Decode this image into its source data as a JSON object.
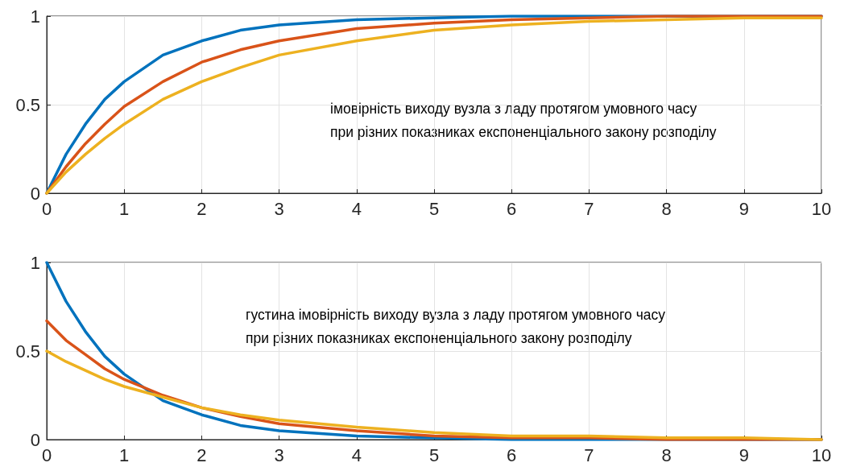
{
  "chart_data": [
    {
      "type": "line",
      "x": [
        0,
        0.25,
        0.5,
        0.75,
        1,
        1.5,
        2,
        2.5,
        3,
        4,
        5,
        6,
        7,
        8,
        9,
        10
      ],
      "xlim": [
        0,
        10
      ],
      "xticks": [
        0,
        1,
        2,
        3,
        4,
        5,
        6,
        7,
        8,
        9,
        10
      ],
      "ylim": [
        0,
        1
      ],
      "yticks": [
        0,
        0.5,
        1
      ],
      "grid": true,
      "annotations": [
        "імовірність виходу вузла з ладу протягом умовного часу\nпри різних показниках експоненціального закону розподілу"
      ],
      "series": [
        {
          "color": "#0072bd",
          "values": [
            0,
            0.22,
            0.39,
            0.53,
            0.63,
            0.78,
            0.86,
            0.92,
            0.95,
            0.98,
            0.99,
            1,
            1,
            1,
            1,
            1
          ]
        },
        {
          "color": "#d95319",
          "values": [
            0,
            0.15,
            0.28,
            0.39,
            0.49,
            0.63,
            0.74,
            0.81,
            0.86,
            0.93,
            0.96,
            0.98,
            0.99,
            1,
            1,
            1
          ]
        },
        {
          "color": "#edb120",
          "values": [
            0,
            0.12,
            0.22,
            0.31,
            0.39,
            0.53,
            0.63,
            0.71,
            0.78,
            0.86,
            0.92,
            0.95,
            0.97,
            0.98,
            0.99,
            0.99
          ]
        }
      ]
    },
    {
      "type": "line",
      "x": [
        0,
        0.25,
        0.5,
        0.75,
        1,
        1.5,
        2,
        2.5,
        3,
        4,
        5,
        6,
        7,
        8,
        9,
        10
      ],
      "xlim": [
        0,
        10
      ],
      "xticks": [
        0,
        1,
        2,
        3,
        4,
        5,
        6,
        7,
        8,
        9,
        10
      ],
      "ylim": [
        0,
        1
      ],
      "yticks": [
        0,
        0.5,
        1
      ],
      "grid": true,
      "annotations": [
        "густина імовірність виходу вузла з ладу протягом умовного часу\nпри різних показниках експоненціального закону розподілу"
      ],
      "series": [
        {
          "color": "#0072bd",
          "values": [
            1,
            0.78,
            0.61,
            0.47,
            0.37,
            0.22,
            0.14,
            0.08,
            0.05,
            0.02,
            0.01,
            0,
            0,
            0,
            0,
            0
          ]
        },
        {
          "color": "#d95319",
          "values": [
            0.67,
            0.56,
            0.48,
            0.4,
            0.34,
            0.25,
            0.18,
            0.13,
            0.09,
            0.05,
            0.02,
            0.01,
            0.01,
            0,
            0,
            0
          ]
        },
        {
          "color": "#edb120",
          "values": [
            0.5,
            0.44,
            0.39,
            0.34,
            0.3,
            0.24,
            0.18,
            0.14,
            0.11,
            0.07,
            0.04,
            0.02,
            0.02,
            0.01,
            0.01,
            0
          ]
        }
      ]
    }
  ]
}
